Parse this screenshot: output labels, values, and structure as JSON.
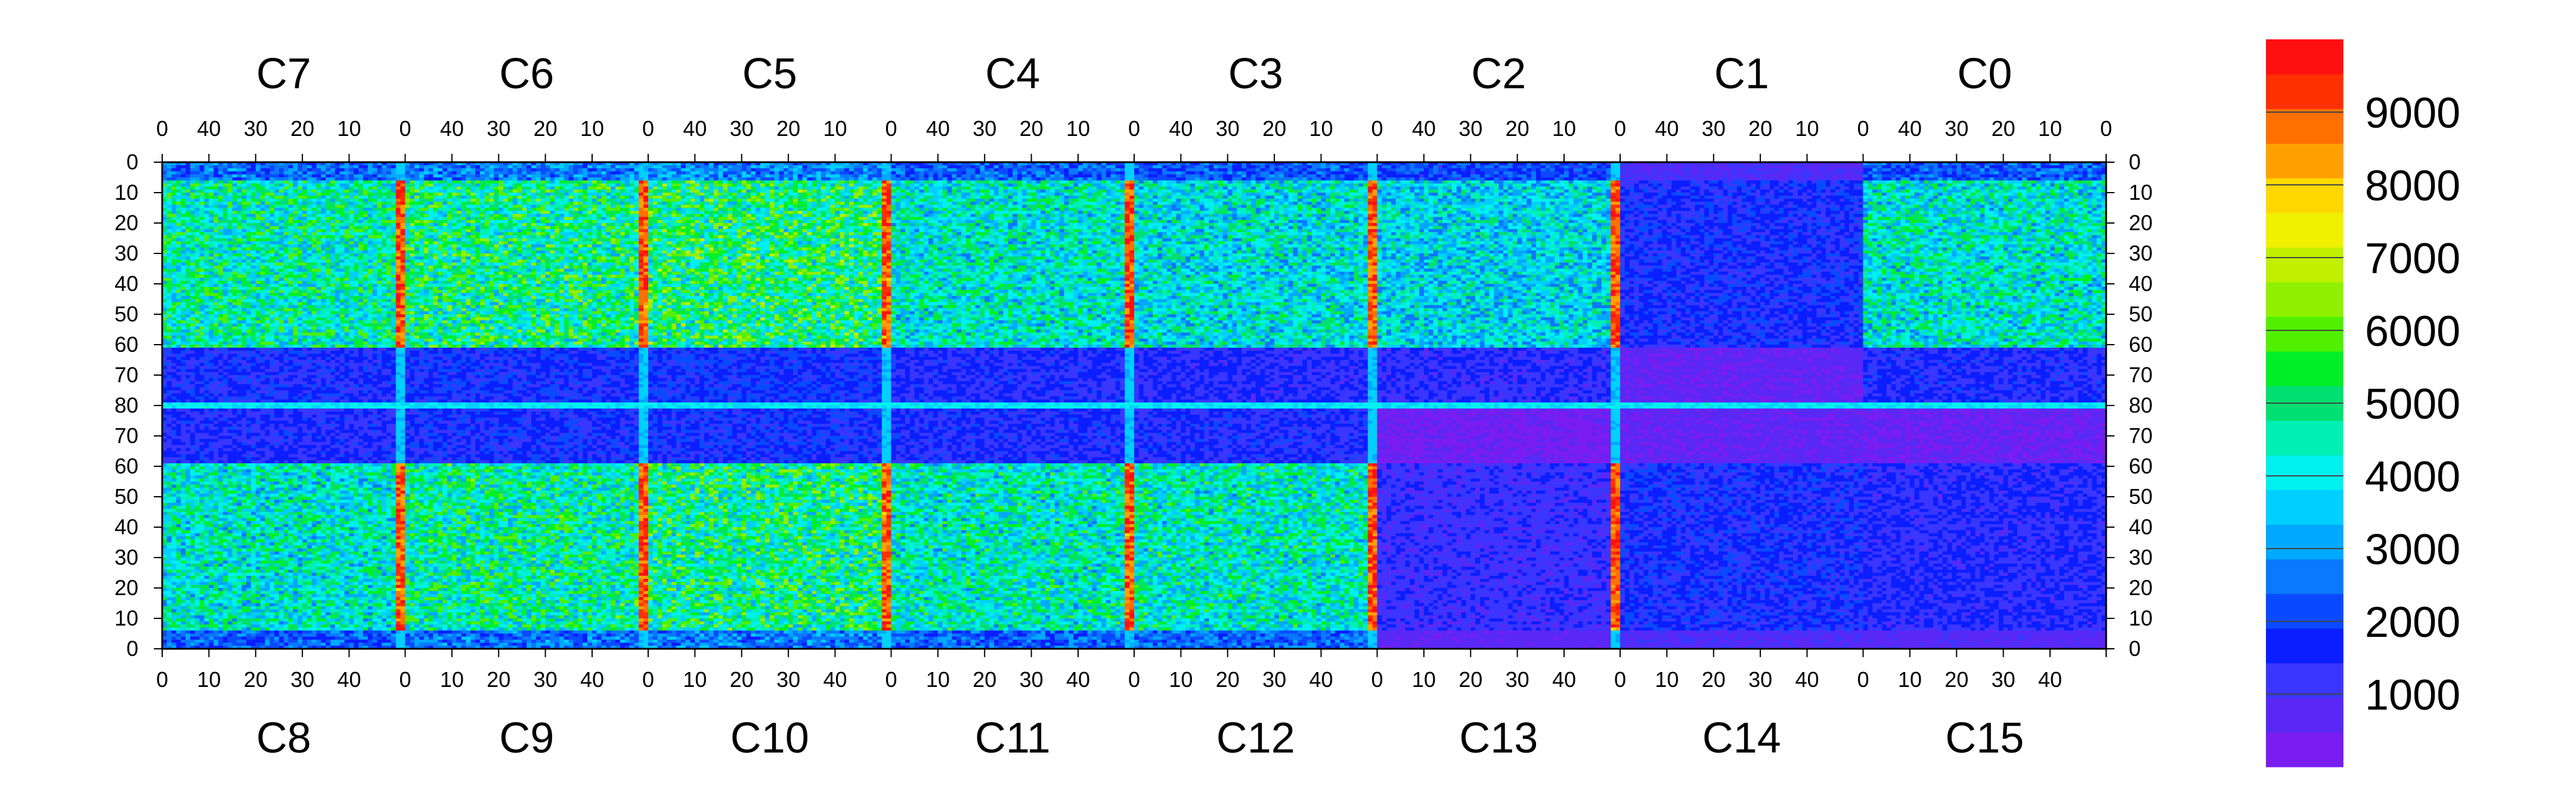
{
  "chart_data": {
    "type": "heatmap",
    "title": "",
    "top_chips": [
      "C7",
      "C6",
      "C5",
      "C4",
      "C3",
      "C2",
      "C1",
      "C0"
    ],
    "bottom_chips": [
      "C8",
      "C9",
      "C10",
      "C11",
      "C12",
      "C13",
      "C14",
      "C15"
    ],
    "top_chip_x_ticks": [
      "40",
      "30",
      "20",
      "10",
      "0"
    ],
    "bottom_chip_x_ticks": [
      "0",
      "10",
      "20",
      "30",
      "40"
    ],
    "top_edge_right_tick": "0",
    "bottom_edge_left_tick": "0",
    "y_ticks": [
      "0",
      "10",
      "20",
      "30",
      "40",
      "50",
      "60",
      "70",
      "80",
      "70",
      "60",
      "50",
      "40",
      "30",
      "20",
      "10",
      "0"
    ],
    "columns_per_chip": 52,
    "rows_per_half": 80,
    "zlim": [
      0,
      10000
    ],
    "colorbar_labels": [
      "9000",
      "8000",
      "7000",
      "6000",
      "5000",
      "4000",
      "3000",
      "2000",
      "1000"
    ],
    "colorbar_label_values": [
      9000,
      8000,
      7000,
      6000,
      5000,
      4000,
      3000,
      2000,
      1000
    ],
    "palette": [
      "#7a1df0",
      "#5a28f5",
      "#3a36ff",
      "#0a1eff",
      "#0a4aff",
      "#0a78ff",
      "#00a8ff",
      "#00d0ff",
      "#00f0f0",
      "#00f0b4",
      "#00e070",
      "#00f028",
      "#50f000",
      "#90f000",
      "#c0f000",
      "#f0f000",
      "#ffd800",
      "#ffa000",
      "#ff7000",
      "#ff3000",
      "#ff1010"
    ],
    "chip_approx_mean_adc": {
      "C7": 4500,
      "C6": 4800,
      "C5": 5000,
      "C4": 4200,
      "C3": 4000,
      "C2": 3800,
      "C1": 1600,
      "C0": 4200,
      "C8": 4200,
      "C9": 4600,
      "C10": 4800,
      "C11": 4300,
      "C12": 4300,
      "C13": 1200,
      "C14": 1600,
      "C15": 1400
    },
    "hot_double_columns_adc": 9500
  }
}
